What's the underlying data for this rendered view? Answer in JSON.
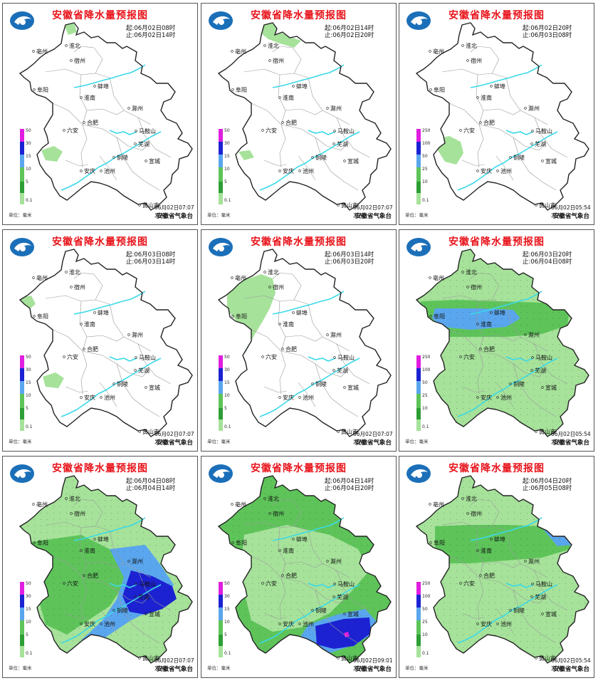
{
  "page": {
    "panels": [
      {
        "title": "安徽省降水量预报图",
        "start": "起:06月02日08时",
        "end": "止:06月02日14时",
        "issued": "06月02日07:07发布",
        "legend_ticks": [
          "50",
          "30",
          "15",
          "10",
          "5",
          "0.1"
        ],
        "coverage": "nw-tiny"
      },
      {
        "title": "安徽省降水量预报图",
        "start": "起:06月02日14时",
        "end": "止:06月02日20时",
        "issued": "06月02日07:07发布",
        "legend_ticks": [
          "50",
          "30",
          "15",
          "10",
          "5",
          "0.1"
        ],
        "coverage": "north-tiny"
      },
      {
        "title": "安徽省降水量预报图",
        "start": "起:06月02日20时",
        "end": "止:06月03日08时",
        "issued": "06月02日05:54发布",
        "legend_ticks": [
          "250",
          "100",
          "50",
          "25",
          "10",
          "0.1"
        ],
        "coverage": "sw-tiny"
      },
      {
        "title": "安徽省降水量预报图",
        "start": "起:06月03日08时",
        "end": "止:06月03日14时",
        "issued": "06月02日07:07发布",
        "legend_ticks": [
          "50",
          "30",
          "15",
          "10",
          "5",
          "0.1"
        ],
        "coverage": "west-tiny"
      },
      {
        "title": "安徽省降水量预报图",
        "start": "起:06月03日14时",
        "end": "止:06月03日20时",
        "issued": "06月02日07:07发布",
        "legend_ticks": [
          "50",
          "30",
          "15",
          "10",
          "5",
          "0.1"
        ],
        "coverage": "nw-band"
      },
      {
        "title": "安徽省降水量预报图",
        "start": "起:06月03日20时",
        "end": "止:06月04日08时",
        "issued": "06月02日05:54发布",
        "legend_ticks": [
          "250",
          "100",
          "50",
          "25",
          "10",
          "0.1"
        ],
        "coverage": "full-central-blue"
      },
      {
        "title": "安徽省降水量预报图",
        "start": "起:06月04日08时",
        "end": "止:06月04日14时",
        "issued": "06月02日07:07发布",
        "legend_ticks": [
          "50",
          "30",
          "15",
          "10",
          "5",
          "0.1"
        ],
        "coverage": "full-east-blue"
      },
      {
        "title": "安徽省降水量预报图",
        "start": "起:06月04日14时",
        "end": "止:06月04日20时",
        "issued": "06月02日09:01发布",
        "legend_ticks": [
          "50",
          "30",
          "15",
          "10",
          "5",
          "0.1"
        ],
        "coverage": "full-south-blue"
      },
      {
        "title": "安徽省降水量预报图",
        "start": "起:06月04日20时",
        "end": "止:06月05日08时",
        "issued": "06月02日05:54发布",
        "legend_ticks": [
          "250",
          "100",
          "50",
          "25",
          "10",
          "0.1"
        ],
        "coverage": "full-north-band"
      }
    ],
    "agency": "安徽省气象台",
    "unit": "单位：毫米",
    "cities": [
      "淮北",
      "宿州",
      "亳州",
      "阜阳",
      "蚌埠",
      "淮南",
      "滁州",
      "六安",
      "合肥",
      "马鞍山",
      "芜湖",
      "铜陵",
      "宣城",
      "安庆",
      "池州",
      "黄山市"
    ],
    "colors": {
      "title": "#e8141b",
      "light_green": "#a6e29a",
      "green": "#5ec45a",
      "dark_green": "#2e9e36",
      "light_blue": "#5aa6ee",
      "blue": "#1c22d2",
      "magenta": "#e01ee0",
      "river": "#3ad9e8",
      "boundary": "#9a9a9a",
      "outline": "#222222"
    }
  }
}
